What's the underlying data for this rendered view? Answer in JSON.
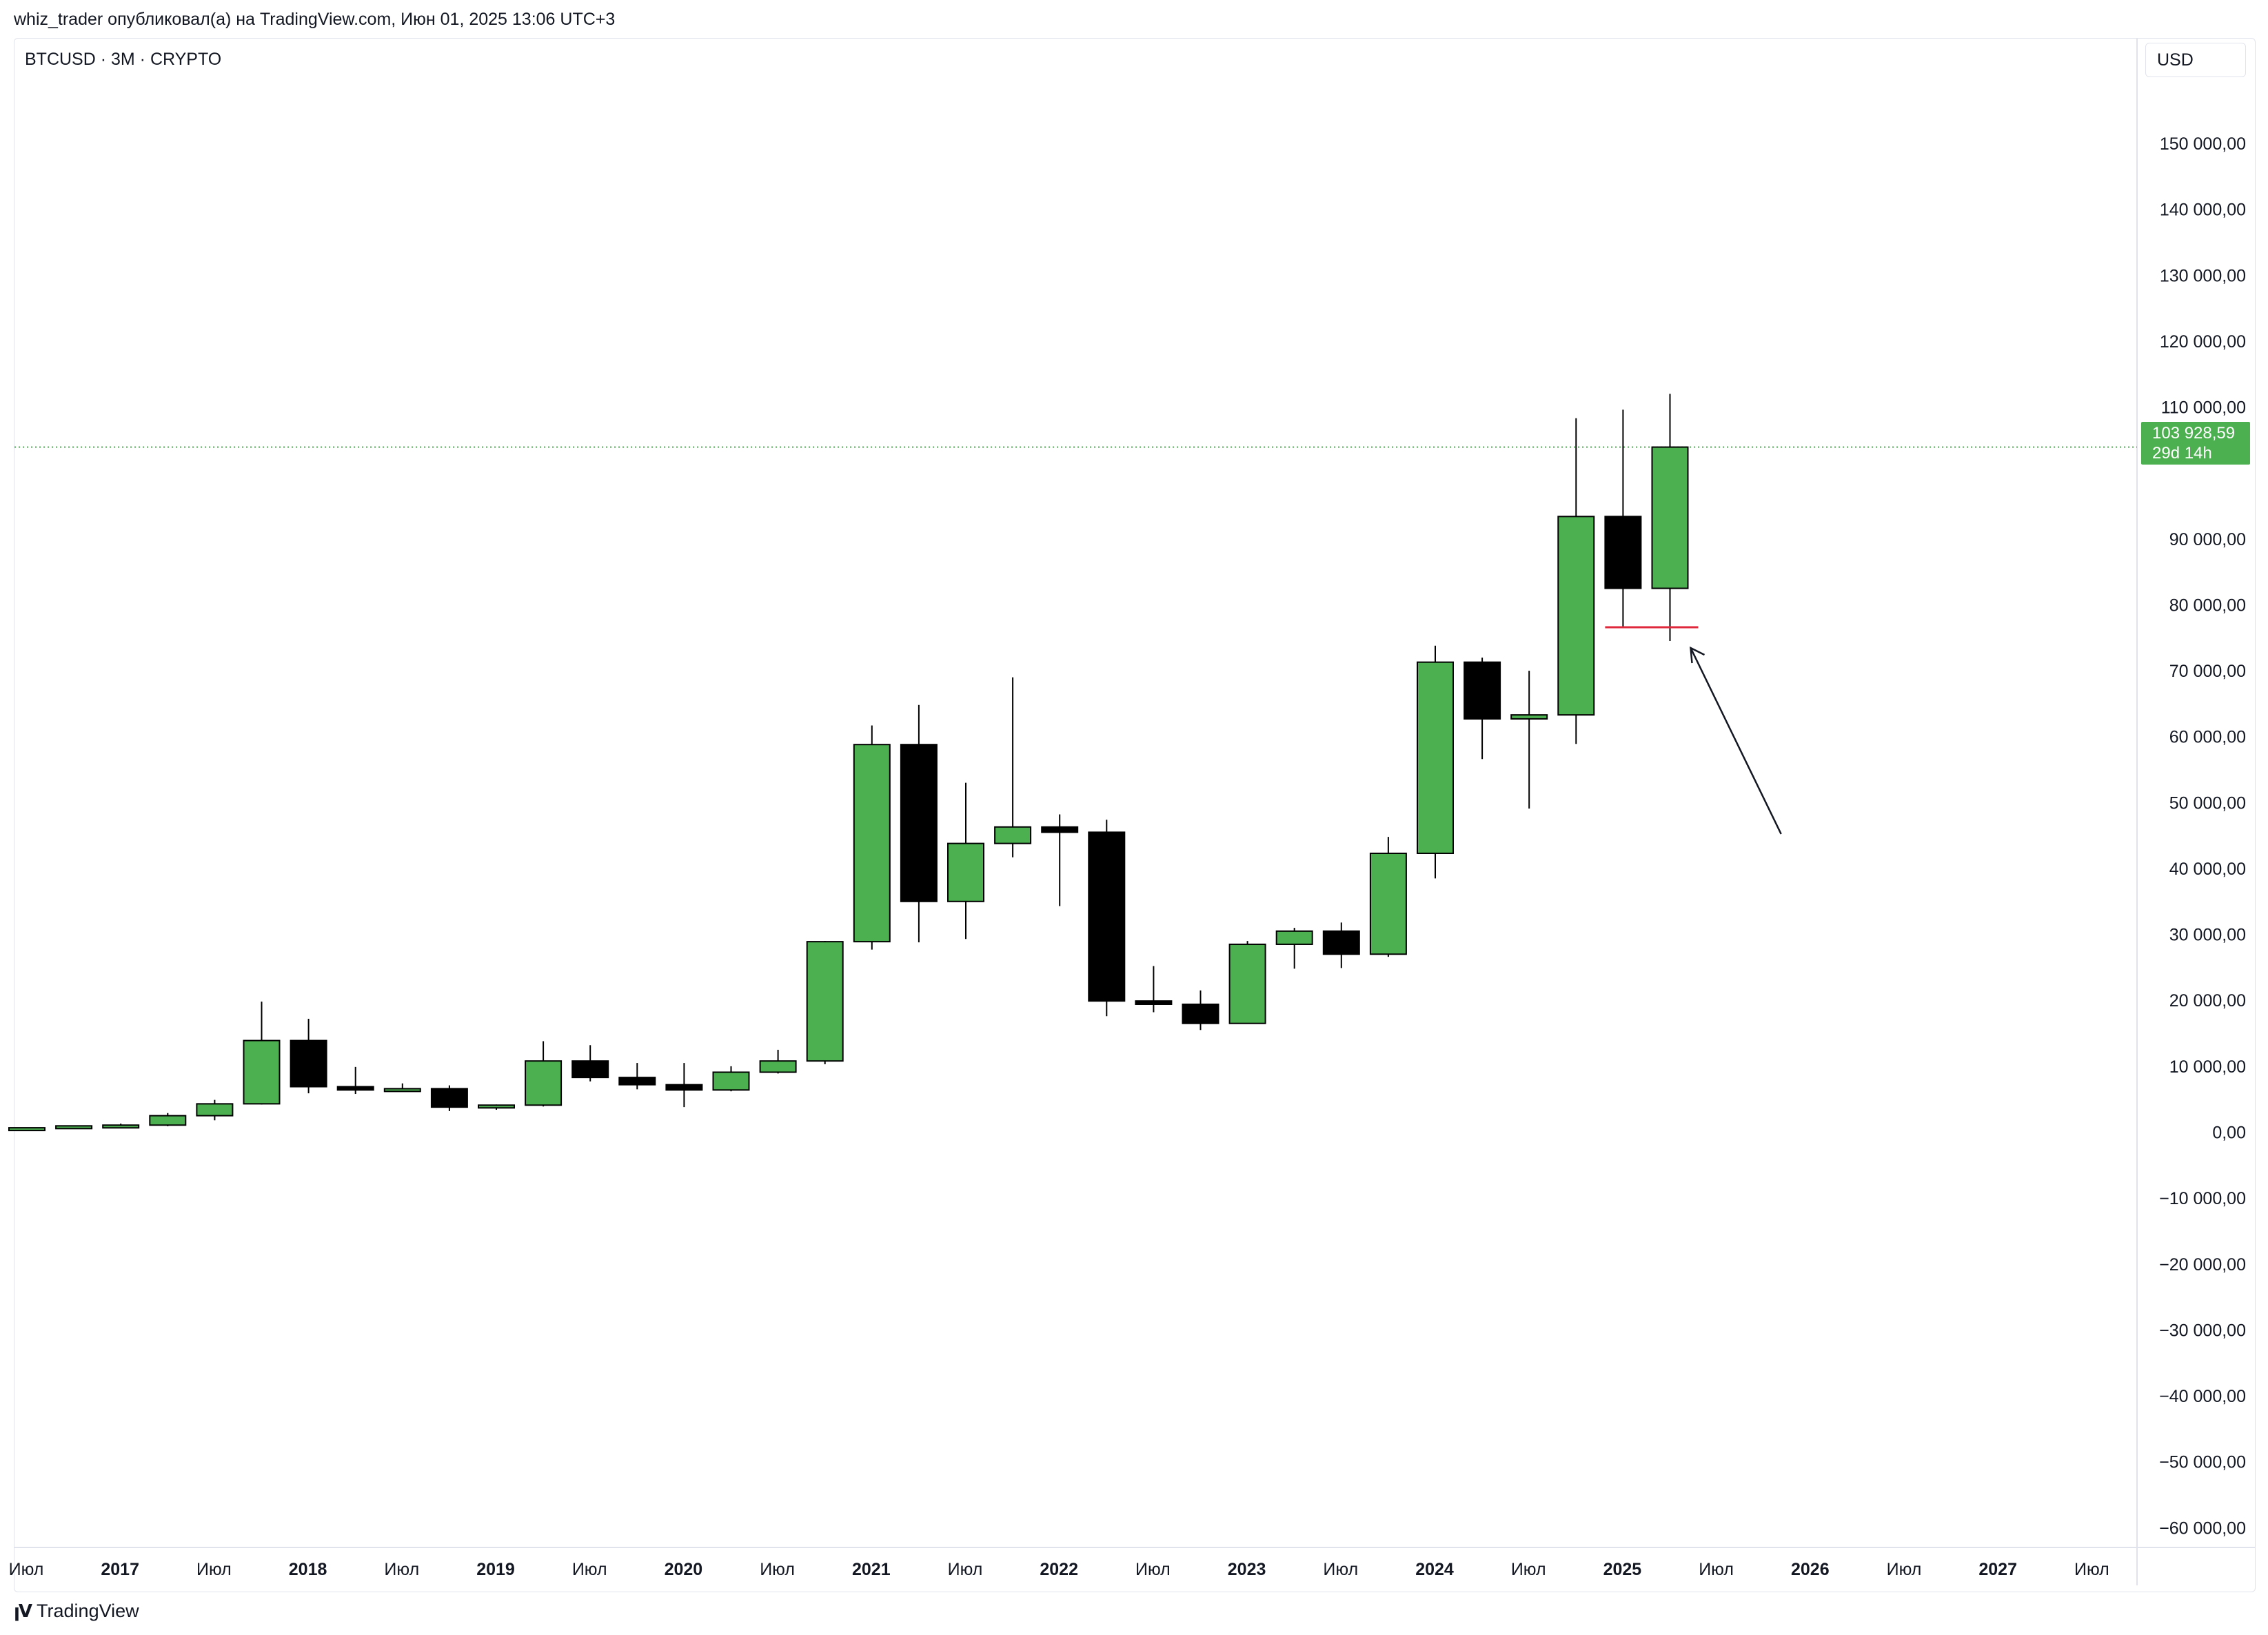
{
  "header": {
    "text": "whiz_trader опубликовал(а) на TradingView.com, Июн 01, 2025 13:06 UTC+3"
  },
  "symbol": {
    "text": "BTCUSD · 3M · CRYPTO"
  },
  "currency": {
    "label": "USD"
  },
  "last_price": {
    "value": "103 928,59",
    "countdown": "29d 14h",
    "color": "#4caf50"
  },
  "footer": {
    "logo_icon": "tradingview-logo-icon",
    "brand": "TradingView"
  },
  "colors": {
    "up": "#4caf50",
    "down": "#000000",
    "support_line": "#e0283d",
    "price_line": "#4caf50"
  },
  "chart_data": {
    "type": "candlestick",
    "y_tick_labels": [
      "150 000,00",
      "140 000,00",
      "130 000,00",
      "120 000,00",
      "110 000,00",
      "90 000,00",
      "80 000,00",
      "70 000,00",
      "60 000,00",
      "50 000,00",
      "40 000,00",
      "30 000,00",
      "20 000,00",
      "10 000,00",
      "0,00",
      "−10 000,00",
      "−20 000,00",
      "−30 000,00",
      "−40 000,00",
      "−50 000,00",
      "−60 000,00"
    ],
    "x_tick_labels": [
      "Июл",
      "2017",
      "Июл",
      "2018",
      "Июл",
      "2019",
      "Июл",
      "2020",
      "Июл",
      "2021",
      "Июл",
      "2022",
      "Июл",
      "2023",
      "Июл",
      "2024",
      "Июл",
      "2025",
      "Июл",
      "2026",
      "Июл",
      "2027",
      "Июл"
    ],
    "ylim": [
      -63000,
      166000
    ],
    "grid": false,
    "candles": [
      {
        "open": 420,
        "high": 700,
        "low": 360,
        "close": 670
      },
      {
        "open": 670,
        "high": 1000,
        "low": 600,
        "close": 960
      },
      {
        "open": 960,
        "high": 1300,
        "low": 780,
        "close": 1070
      },
      {
        "open": 1070,
        "high": 2900,
        "low": 900,
        "close": 2500
      },
      {
        "open": 2500,
        "high": 4900,
        "low": 1800,
        "close": 4300
      },
      {
        "open": 4300,
        "high": 19800,
        "low": 4200,
        "close": 13900
      },
      {
        "open": 13900,
        "high": 17200,
        "low": 5900,
        "close": 6900
      },
      {
        "open": 6900,
        "high": 9900,
        "low": 5800,
        "close": 6400
      },
      {
        "open": 6400,
        "high": 7400,
        "low": 6200,
        "close": 6600
      },
      {
        "open": 6600,
        "high": 7100,
        "low": 3200,
        "close": 3800
      },
      {
        "open": 3800,
        "high": 4200,
        "low": 3400,
        "close": 4100
      },
      {
        "open": 4100,
        "high": 13800,
        "low": 3900,
        "close": 10800
      },
      {
        "open": 10800,
        "high": 13200,
        "low": 7700,
        "close": 8300
      },
      {
        "open": 8300,
        "high": 10500,
        "low": 6500,
        "close": 7200
      },
      {
        "open": 7200,
        "high": 10500,
        "low": 3800,
        "close": 6400
      },
      {
        "open": 6400,
        "high": 10000,
        "low": 6200,
        "close": 9100
      },
      {
        "open": 9100,
        "high": 12500,
        "low": 8900,
        "close": 10800
      },
      {
        "open": 10800,
        "high": 29000,
        "low": 10300,
        "close": 28900
      },
      {
        "open": 28900,
        "high": 61700,
        "low": 27700,
        "close": 58800
      },
      {
        "open": 58800,
        "high": 64800,
        "low": 28800,
        "close": 35000
      },
      {
        "open": 35000,
        "high": 53000,
        "low": 29300,
        "close": 43800
      },
      {
        "open": 43800,
        "high": 69000,
        "low": 41700,
        "close": 46300
      },
      {
        "open": 46300,
        "high": 48200,
        "low": 34300,
        "close": 45500
      },
      {
        "open": 45500,
        "high": 47400,
        "low": 17600,
        "close": 19900
      },
      {
        "open": 19900,
        "high": 25200,
        "low": 18200,
        "close": 19400
      },
      {
        "open": 19400,
        "high": 21500,
        "low": 15500,
        "close": 16500
      },
      {
        "open": 16500,
        "high": 29000,
        "low": 16500,
        "close": 28500
      },
      {
        "open": 28500,
        "high": 31000,
        "low": 24800,
        "close": 30500
      },
      {
        "open": 30500,
        "high": 31800,
        "low": 24900,
        "close": 27000
      },
      {
        "open": 27000,
        "high": 44800,
        "low": 26600,
        "close": 42300
      },
      {
        "open": 42300,
        "high": 73800,
        "low": 38500,
        "close": 71300
      },
      {
        "open": 71300,
        "high": 72000,
        "low": 56600,
        "close": 62700
      },
      {
        "open": 62700,
        "high": 70000,
        "low": 49100,
        "close": 63300
      },
      {
        "open": 63300,
        "high": 108300,
        "low": 58900,
        "close": 93400
      },
      {
        "open": 93400,
        "high": 109600,
        "low": 76600,
        "close": 82500
      },
      {
        "open": 82500,
        "high": 112000,
        "low": 74500,
        "close": 103929
      }
    ],
    "support_level": 76600,
    "last_price": 103928.59
  }
}
